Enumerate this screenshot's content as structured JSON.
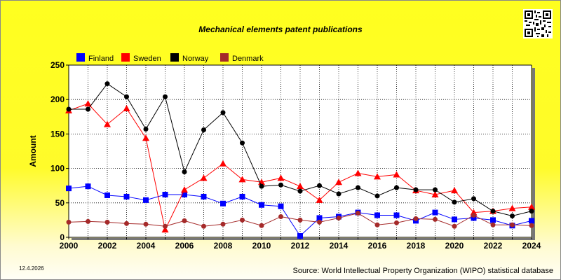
{
  "date_stamp": "12.4.2026",
  "source": "Source: World Intellectual Property Organization (WIPO) statistical database",
  "chart_data": {
    "type": "line",
    "title": "Mechanical elements patent publications",
    "xlabel": "",
    "ylabel": "Amount",
    "ylim": [
      0,
      250
    ],
    "yticks": [
      0,
      50,
      100,
      150,
      200,
      250
    ],
    "xlim": [
      2000,
      2024
    ],
    "xticks": [
      2000,
      2002,
      2004,
      2006,
      2008,
      2010,
      2012,
      2014,
      2016,
      2018,
      2020,
      2022,
      2024
    ],
    "grid": true,
    "legend_position": "top-left",
    "x": [
      2000,
      2001,
      2002,
      2003,
      2004,
      2005,
      2006,
      2007,
      2008,
      2009,
      2010,
      2011,
      2012,
      2013,
      2014,
      2015,
      2016,
      2017,
      2018,
      2019,
      2020,
      2021,
      2022,
      2023,
      2024
    ],
    "series": [
      {
        "name": "Finland",
        "color": "#0000ff",
        "marker": "square",
        "values": [
          71,
          74,
          61,
          59,
          54,
          62,
          62,
          59,
          49,
          59,
          47,
          45,
          2,
          28,
          30,
          36,
          32,
          32,
          24,
          36,
          26,
          28,
          25,
          17,
          24
        ]
      },
      {
        "name": "Sweden",
        "color": "#ff0000",
        "marker": "triangle",
        "values": [
          184,
          194,
          164,
          187,
          144,
          11,
          69,
          86,
          107,
          84,
          80,
          86,
          74,
          54,
          80,
          93,
          88,
          91,
          68,
          62,
          68,
          36,
          38,
          42,
          44
        ]
      },
      {
        "name": "Norway",
        "color": "#000000",
        "marker": "circle",
        "values": [
          186,
          186,
          223,
          204,
          157,
          204,
          95,
          156,
          181,
          137,
          74,
          76,
          67,
          75,
          63,
          72,
          60,
          72,
          69,
          69,
          51,
          56,
          38,
          31,
          38
        ]
      },
      {
        "name": "Denmark",
        "color": "#a52a2a",
        "marker": "circle",
        "values": [
          22,
          23,
          22,
          20,
          19,
          16,
          24,
          16,
          19,
          25,
          17,
          30,
          25,
          22,
          28,
          35,
          18,
          21,
          27,
          26,
          16,
          32,
          18,
          18,
          17
        ]
      }
    ]
  }
}
